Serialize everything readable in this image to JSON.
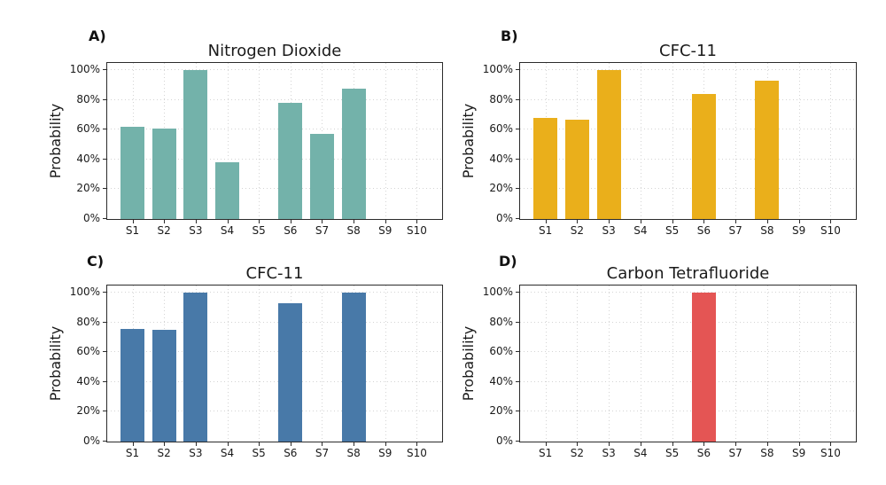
{
  "figure": {
    "background": "#ffffff",
    "text_color": "#111111",
    "grid_color": "#d4d4d4",
    "spine_color": "#2b2b2b"
  },
  "chart_data": [
    {
      "type": "bar",
      "panel_label": "A)",
      "title": "Nitrogen Dioxide",
      "ylabel": "Probability",
      "categories": [
        "S1",
        "S2",
        "S3",
        "S4",
        "S5",
        "S6",
        "S7",
        "S8",
        "S9",
        "S10"
      ],
      "values": [
        62,
        61,
        100,
        38,
        0,
        78,
        57,
        88,
        0,
        0
      ],
      "ytick_values": [
        0,
        20,
        40,
        60,
        80,
        100
      ],
      "ytick_labels": [
        "0%",
        "20%",
        "40%",
        "60%",
        "80%",
        "100%"
      ],
      "ylim": [
        0,
        105
      ],
      "bar_color": "#73B2AA",
      "grid": "dotted",
      "legend": "none"
    },
    {
      "type": "bar",
      "panel_label": "B)",
      "title": "CFC-11",
      "ylabel": "Probability",
      "categories": [
        "S1",
        "S2",
        "S3",
        "S4",
        "S5",
        "S6",
        "S7",
        "S8",
        "S9",
        "S10"
      ],
      "values": [
        68,
        67,
        100,
        0,
        0,
        84,
        0,
        93,
        0,
        0
      ],
      "ytick_values": [
        0,
        20,
        40,
        60,
        80,
        100
      ],
      "ytick_labels": [
        "0%",
        "20%",
        "40%",
        "60%",
        "80%",
        "100%"
      ],
      "ylim": [
        0,
        105
      ],
      "bar_color": "#EAAF1B",
      "grid": "dotted",
      "legend": "none"
    },
    {
      "type": "bar",
      "panel_label": "C)",
      "title": "CFC-11",
      "ylabel": "Probability",
      "categories": [
        "S1",
        "S2",
        "S3",
        "S4",
        "S5",
        "S6",
        "S7",
        "S8",
        "S9",
        "S10"
      ],
      "values": [
        76,
        75,
        100,
        0,
        0,
        93,
        0,
        100,
        0,
        0
      ],
      "ytick_values": [
        0,
        20,
        40,
        60,
        80,
        100
      ],
      "ytick_labels": [
        "0%",
        "20%",
        "40%",
        "60%",
        "80%",
        "100%"
      ],
      "ylim": [
        0,
        105
      ],
      "bar_color": "#4879A8",
      "grid": "dotted",
      "legend": "none"
    },
    {
      "type": "bar",
      "panel_label": "D)",
      "title": "Carbon Tetrafluoride",
      "ylabel": "Probability",
      "categories": [
        "S1",
        "S2",
        "S3",
        "S4",
        "S5",
        "S6",
        "S7",
        "S8",
        "S9",
        "S10"
      ],
      "values": [
        0,
        0,
        0,
        0,
        0,
        100,
        0,
        0,
        0,
        0
      ],
      "ytick_values": [
        0,
        20,
        40,
        60,
        80,
        100
      ],
      "ytick_labels": [
        "0%",
        "20%",
        "40%",
        "60%",
        "80%",
        "100%"
      ],
      "ylim": [
        0,
        105
      ],
      "bar_color": "#E45554",
      "grid": "dotted",
      "legend": "none"
    }
  ]
}
